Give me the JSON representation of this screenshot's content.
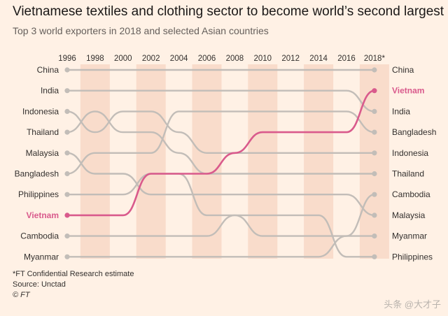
{
  "title": "Vietnamese textiles and clothing sector to become world’s second largest",
  "subtitle": "Top 3 world exporters in 2018 and selected Asian countries",
  "footnotes": [
    "*FT Confidential Research estimate",
    "Source: Unctad",
    "© FT"
  ],
  "watermark": "头条 @大才子",
  "colors": {
    "background": "#fff1e5",
    "band": "#f9dccb",
    "line": "#c2bdb8",
    "highlight": "#d95a8c",
    "text": "#33302e"
  },
  "chart_data": {
    "type": "bump",
    "title": "Vietnamese textiles and clothing sector to become world’s second largest",
    "subtitle": "Top 3 world exporters in 2018 and selected Asian countries",
    "x": [
      "1996",
      "1998",
      "2000",
      "2002",
      "2004",
      "2006",
      "2008",
      "2010",
      "2012",
      "2014",
      "2016",
      "2018*"
    ],
    "y_inverted": true,
    "highlight": "Vietnam",
    "left_labels": [
      "China",
      "India",
      "Indonesia",
      "Thailand",
      "Malaysia",
      "Bangladesh",
      "Philippines",
      "Vietnam",
      "Cambodia",
      "Myanmar"
    ],
    "right_labels": [
      "China",
      "Vietnam",
      "India",
      "Bangladesh",
      "Indonesia",
      "Thailand",
      "Cambodia",
      "Malaysia",
      "Myanmar",
      "Philippines"
    ],
    "series": [
      {
        "name": "China",
        "values": [
          1,
          1,
          1,
          1,
          1,
          1,
          1,
          1,
          1,
          1,
          1,
          1
        ]
      },
      {
        "name": "India",
        "values": [
          2,
          2,
          2,
          2,
          2,
          2,
          2,
          2,
          2,
          2,
          2,
          3
        ]
      },
      {
        "name": "Indonesia",
        "values": [
          3,
          4,
          3,
          3,
          4,
          5,
          5,
          5,
          5,
          5,
          5,
          5
        ]
      },
      {
        "name": "Thailand",
        "values": [
          4,
          3,
          4,
          4,
          5,
          6,
          6,
          6,
          6,
          6,
          6,
          6
        ]
      },
      {
        "name": "Malaysia",
        "values": [
          5,
          6,
          6,
          7,
          7,
          7,
          7,
          7,
          7,
          7,
          7,
          8
        ]
      },
      {
        "name": "Bangladesh",
        "values": [
          6,
          5,
          5,
          5,
          3,
          3,
          3,
          3,
          3,
          3,
          3,
          4
        ]
      },
      {
        "name": "Philippines",
        "values": [
          7,
          7,
          7,
          6,
          6,
          8,
          8,
          8,
          8,
          8,
          10,
          10
        ]
      },
      {
        "name": "Vietnam",
        "values": [
          8,
          8,
          8,
          6,
          6,
          6,
          5,
          4,
          4,
          4,
          4,
          2
        ]
      },
      {
        "name": "Cambodia",
        "values": [
          9,
          9,
          9,
          9,
          9,
          9,
          8,
          9,
          9,
          9,
          9,
          7
        ]
      },
      {
        "name": "Myanmar",
        "values": [
          10,
          10,
          10,
          10,
          10,
          10,
          10,
          10,
          10,
          10,
          9,
          9
        ]
      }
    ]
  }
}
